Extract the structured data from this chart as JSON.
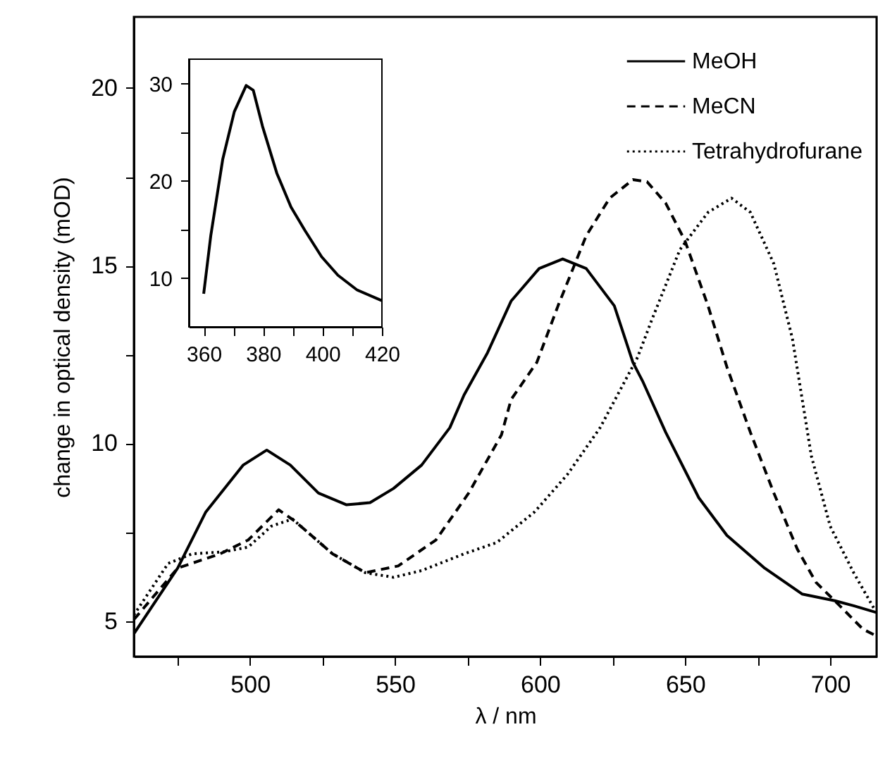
{
  "chart_data": [
    {
      "type": "line",
      "xlabel": "λ / nm",
      "ylabel": "change in optical density (mOD)",
      "xlim": [
        460,
        716
      ],
      "ylim": [
        4,
        22
      ],
      "xticks": [
        {
          "value": 475,
          "label": null
        },
        500,
        {
          "value": 525,
          "label": null
        },
        550,
        {
          "value": 575,
          "label": null
        },
        600,
        {
          "value": 625,
          "label": null
        },
        650,
        {
          "value": 675,
          "label": null
        },
        700
      ],
      "yticks": [
        5,
        {
          "value": 7.5,
          "label": null
        },
        10,
        {
          "value": 12.5,
          "label": null
        },
        15,
        {
          "value": 17.5,
          "label": null
        },
        20
      ],
      "grid": false,
      "legend": "top right",
      "series": [
        {
          "name": "MeOH",
          "color": "#000000",
          "line_style": "solid",
          "x": [
            460,
            475.1,
            484.8,
            497.7,
            505.8,
            513.9,
            523.6,
            533.3,
            541.4,
            549.5,
            559.2,
            568.9,
            573.8,
            581.9,
            590,
            599.7,
            607.8,
            615.9,
            625.6,
            632,
            635.3,
            643.3,
            654.7,
            664.4,
            677.4,
            690.3,
            701.6,
            708.1,
            715.9
          ],
          "values": [
            4.64,
            6.49,
            8.07,
            9.39,
            9.81,
            9.39,
            8.6,
            8.27,
            8.33,
            8.73,
            9.39,
            10.44,
            11.36,
            12.55,
            14.0,
            14.92,
            15.19,
            14.92,
            13.87,
            12.28,
            11.76,
            10.31,
            8.47,
            7.41,
            6.49,
            5.76,
            5.57,
            5.43,
            5.24
          ]
        },
        {
          "name": "MeCN",
          "color": "#000000",
          "line_style": "dashed",
          "x": [
            460,
            475.1,
            489.7,
            499.4,
            509.9,
            515.5,
            528.5,
            539.8,
            551.1,
            564.1,
            575.4,
            586.7,
            590,
            598.9,
            606.2,
            615.9,
            624,
            632,
            636.9,
            643.3,
            649.9,
            657.9,
            664.4,
            672.5,
            680.6,
            688.7,
            695.1,
            703.3,
            711.3,
            715.9
          ],
          "values": [
            5.04,
            6.49,
            6.89,
            7.28,
            8.13,
            7.81,
            6.89,
            6.36,
            6.55,
            7.28,
            8.6,
            10.24,
            11.23,
            12.28,
            13.87,
            15.84,
            16.9,
            17.42,
            17.36,
            16.76,
            15.71,
            13.87,
            12.15,
            10.31,
            8.6,
            7.02,
            6.09,
            5.43,
            4.77,
            4.58
          ]
        },
        {
          "name": "Tetrahydrofurane",
          "color": "#000000",
          "line_style": "dotted",
          "x": [
            460,
            471.8,
            480,
            491.3,
            499.4,
            507.4,
            514.7,
            528.5,
            539.8,
            549.5,
            559.2,
            573.8,
            585.1,
            598.1,
            609.4,
            620.7,
            633.6,
            638.5,
            648.2,
            657.9,
            666,
            672.5,
            680.6,
            687,
            693.5,
            700,
            708.1,
            715.9
          ],
          "values": [
            5.17,
            6.62,
            6.89,
            6.95,
            7.08,
            7.67,
            7.87,
            6.89,
            6.36,
            6.23,
            6.42,
            6.89,
            7.21,
            8.07,
            9.12,
            10.44,
            12.42,
            13.47,
            15.45,
            16.5,
            16.9,
            16.5,
            15.05,
            12.94,
            9.65,
            7.67,
            6.36,
            5.24
          ]
        }
      ]
    },
    {
      "type": "line",
      "xlim": [
        355,
        420
      ],
      "ylim": [
        5,
        32.5
      ],
      "xticks": [
        360,
        {
          "value": 370,
          "label": null
        },
        380,
        {
          "value": 390,
          "label": null
        },
        400,
        {
          "value": 410,
          "label": null
        },
        420
      ],
      "yticks": [
        10,
        {
          "value": 15,
          "label": null
        },
        20,
        {
          "value": 25,
          "label": null
        },
        30
      ],
      "grid": false,
      "series": [
        {
          "color": "#000000",
          "line_style": "solid",
          "x": [
            360,
            362.4,
            366.4,
            370.3,
            374.3,
            376.7,
            379.8,
            384.6,
            389.4,
            394.1,
            399.7,
            405.2,
            411.6,
            419.9
          ],
          "values": [
            8.4,
            14.4,
            22.2,
            27.1,
            29.8,
            29.3,
            25.6,
            20.8,
            17.3,
            14.9,
            12.2,
            10.3,
            8.8,
            7.7
          ]
        }
      ]
    }
  ]
}
